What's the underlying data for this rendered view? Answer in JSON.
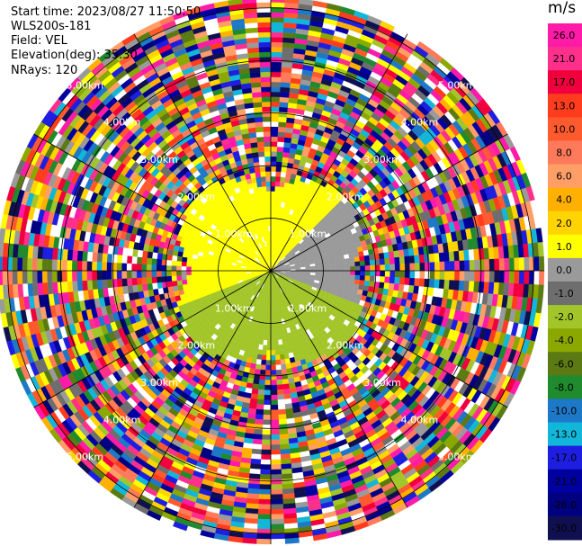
{
  "header": {
    "start_time": "Start time: 2023/08/27 11:50:50",
    "station": "WLS200s-181",
    "field": "Field: VEL",
    "elevation": "Elevation(deg): 35.30",
    "nrays": "NRays: 120"
  },
  "chart_data": {
    "type": "heatmap",
    "projection": "polar-ppi",
    "field": "VEL",
    "nrays": 120,
    "range_rings_label": [
      "1.00km",
      "2.00km",
      "3.00km",
      "4.00km",
      "5.00km"
    ],
    "range_ring_values_km": [
      1,
      2,
      3,
      4,
      5
    ],
    "max_range_km": 5.2,
    "colorbar": {
      "unit": "m/s",
      "ticks": [
        "26.0",
        "21.0",
        "17.0",
        "13.0",
        "10.0",
        "8.0",
        "6.0",
        "4.0",
        "2.0",
        "1.0",
        "0.0",
        "-1.0",
        "-2.0",
        "-4.0",
        "-6.0",
        "-8.0",
        "-10.0",
        "-13.0",
        "-17.0",
        "-21.0",
        "-26.0",
        "-30.0"
      ],
      "bins": [
        {
          "min": 26,
          "color": "#ff1aa8"
        },
        {
          "min": 21,
          "color": "#ff2f8c"
        },
        {
          "min": 17,
          "color": "#f0003c"
        },
        {
          "min": 13,
          "color": "#ff3c1e"
        },
        {
          "min": 10,
          "color": "#ff5a2e"
        },
        {
          "min": 8,
          "color": "#ff7a5a"
        },
        {
          "min": 6,
          "color": "#ff9e66"
        },
        {
          "min": 4,
          "color": "#ffb000"
        },
        {
          "min": 2,
          "color": "#ffd400"
        },
        {
          "min": 1,
          "color": "#ffff00"
        },
        {
          "min": 0,
          "color": "#9a9a9a"
        },
        {
          "min": -1,
          "color": "#6e6e6e"
        },
        {
          "min": -2,
          "color": "#a2c62a"
        },
        {
          "min": -4,
          "color": "#8aa800"
        },
        {
          "min": -6,
          "color": "#5c7a14"
        },
        {
          "min": -8,
          "color": "#1f8a2e"
        },
        {
          "min": -10,
          "color": "#1e78c8"
        },
        {
          "min": -13,
          "color": "#12b6d8"
        },
        {
          "min": -17,
          "color": "#1e1ee0"
        },
        {
          "min": -21,
          "color": "#0000a0"
        },
        {
          "min": -26,
          "color": "#000080"
        },
        {
          "min": -30,
          "color": "#101050"
        }
      ]
    },
    "inner_region": {
      "radius_km": 1.85,
      "positive_color": "#ffff00",
      "negative_colors": [
        "#9a9a9a",
        "#a2c62a"
      ]
    }
  }
}
